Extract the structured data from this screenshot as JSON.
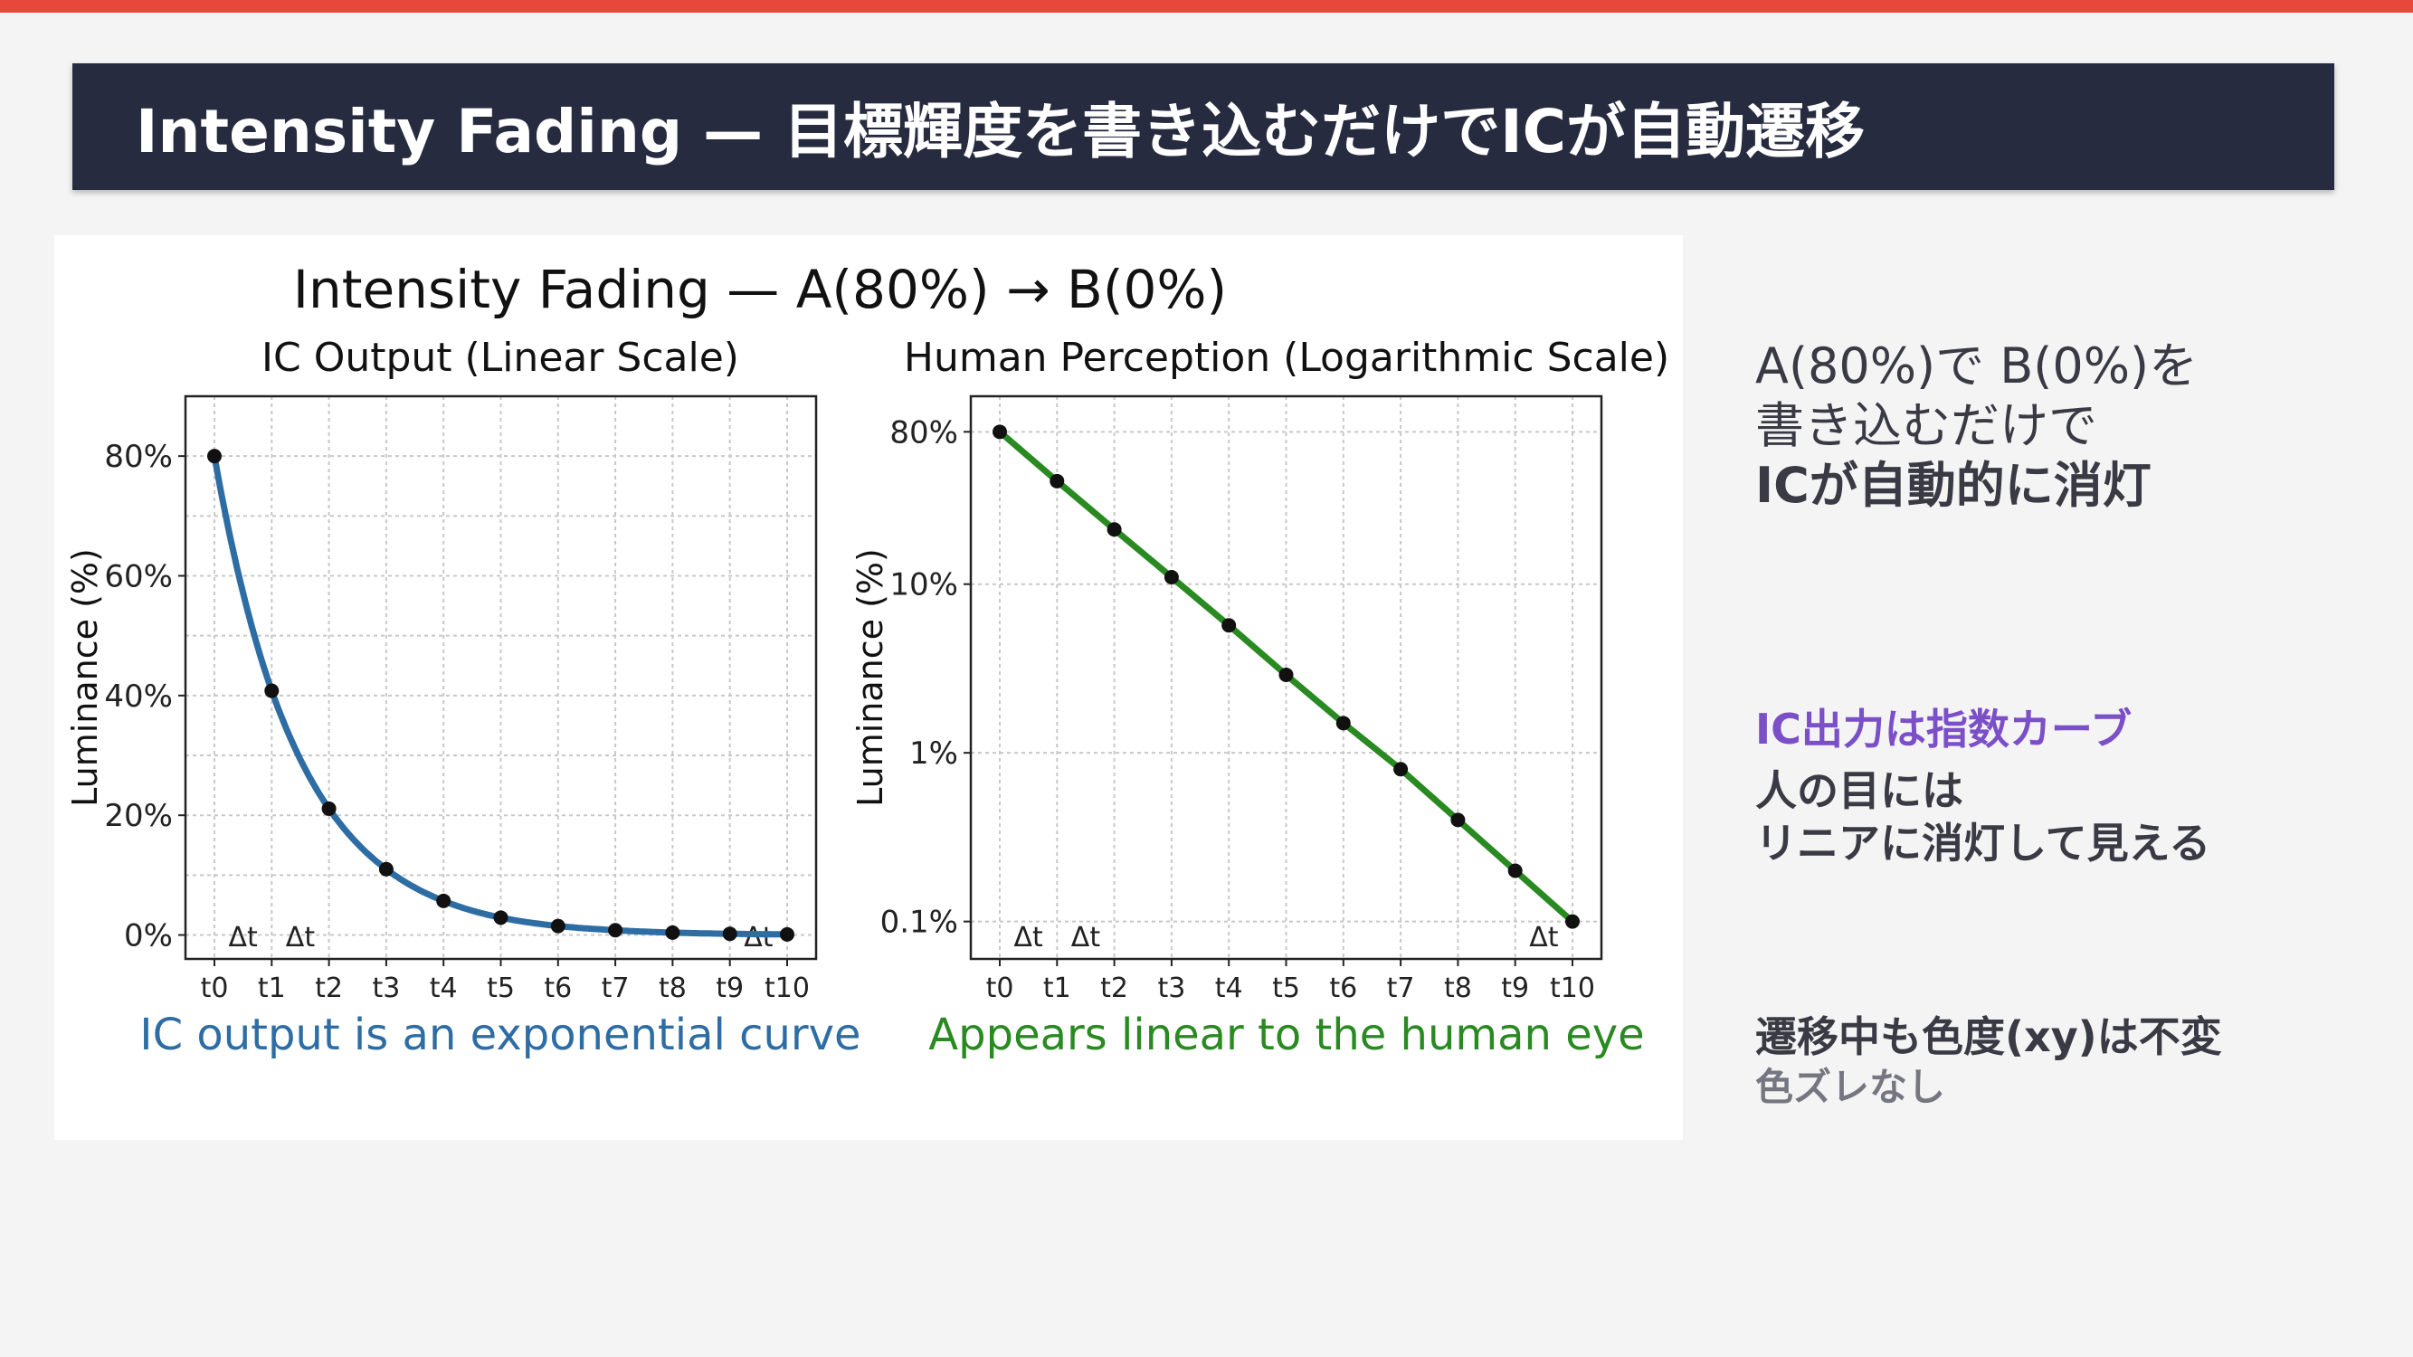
{
  "header": {
    "title": "Intensity Fading — 目標輝度を書き込むだけでICが自動遷移",
    "accent_color": "#e8483b",
    "bar_color": "#272b40"
  },
  "chart_data": {
    "title": "Intensity Fading — A(80%) → B(0%)",
    "delta_label": "Δt",
    "charts": [
      {
        "type": "line",
        "title": "IC Output (Linear Scale)",
        "ylabel": "Luminance (%)",
        "yscale": "linear",
        "ylim": [
          -4,
          90
        ],
        "yticks": [
          0,
          20,
          40,
          60,
          80
        ],
        "ytick_labels": [
          "0%",
          "20%",
          "40%",
          "60%",
          "80%"
        ],
        "categories": [
          "t0",
          "t1",
          "t2",
          "t3",
          "t4",
          "t5",
          "t6",
          "t7",
          "t8",
          "t9",
          "t10"
        ],
        "values": [
          80,
          40.8,
          21.1,
          11,
          5.7,
          2.9,
          1.5,
          0.8,
          0.4,
          0.2,
          0.1
        ],
        "delta_markers_between": [
          [
            0,
            1
          ],
          [
            1,
            2
          ],
          [
            9,
            10
          ]
        ],
        "caption": "IC output is an exponential curve",
        "color": "#2e6da4",
        "grid": true
      },
      {
        "type": "line",
        "title": "Human Perception (Logarithmic Scale)",
        "ylabel": "Luminance (%)",
        "yscale": "log",
        "ylim": [
          0.06,
          130
        ],
        "yticks": [
          0.1,
          1,
          10,
          80
        ],
        "ytick_labels": [
          "0.1%",
          "1%",
          "10%",
          "80%"
        ],
        "categories": [
          "t0",
          "t1",
          "t2",
          "t3",
          "t4",
          "t5",
          "t6",
          "t7",
          "t8",
          "t9",
          "t10"
        ],
        "values": [
          80,
          40.8,
          21.1,
          11,
          5.7,
          2.9,
          1.5,
          0.8,
          0.4,
          0.2,
          0.1
        ],
        "delta_markers_between": [
          [
            0,
            1
          ],
          [
            1,
            2
          ],
          [
            9,
            10
          ]
        ],
        "caption": "Appears linear to the human eye",
        "color": "#2a8a22",
        "grid": true
      }
    ]
  },
  "side": {
    "block1": [
      "A(80%)で B(0%)を",
      "書き込むだけで",
      "ICが自動的に消灯"
    ],
    "block2_heading": "IC出力は指数カーブ",
    "block2": [
      "人の目には",
      "リニアに消灯して見える"
    ],
    "block3_heading": "遷移中も色度(xy)は不変",
    "block3_sub": "色ズレなし"
  }
}
